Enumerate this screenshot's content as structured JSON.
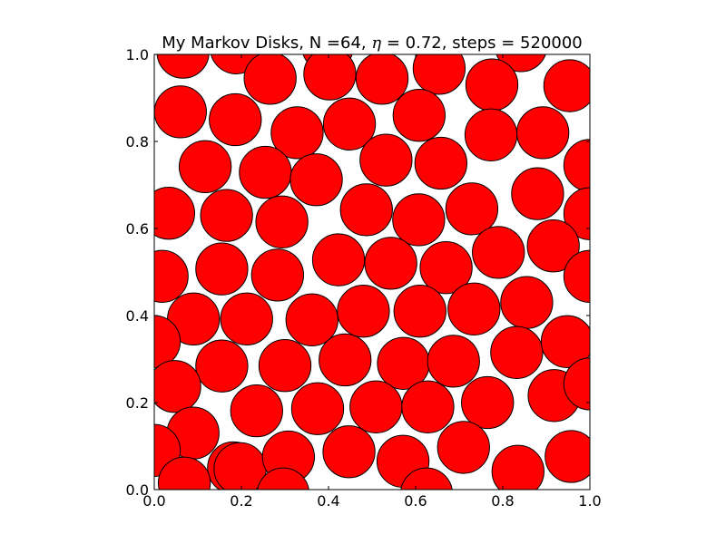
{
  "colors": {
    "disk_fill": "#ff0000",
    "disk_edge": "#000000",
    "axes_edge": "#000000",
    "background": "#ffffff"
  },
  "chart_data": {
    "type": "scatter",
    "title": "My Markov Disks, N =64, η = 0.72, steps = 520000",
    "title_parts": {
      "prefix": "My Markov Disks, N =64, ",
      "symbol": "η",
      "suffix": " = 0.72, steps = 520000"
    },
    "xlabel": "",
    "ylabel": "",
    "xlim": [
      0.0,
      1.0
    ],
    "ylim": [
      0.0,
      1.0
    ],
    "x_ticks": [
      "0.0",
      "0.2",
      "0.4",
      "0.6",
      "0.8",
      "1.0"
    ],
    "y_ticks": [
      "0.0",
      "0.2",
      "0.4",
      "0.6",
      "0.8",
      "1.0"
    ],
    "grid": false,
    "periodic_boundaries": true,
    "disk_radius": 0.0597,
    "marker": "circle",
    "disks": [
      [
        0.066,
        1.005
      ],
      [
        0.188,
        1.015
      ],
      [
        0.398,
        1.02
      ],
      [
        0.842,
        1.02
      ],
      [
        0.266,
        0.945
      ],
      [
        0.403,
        0.955
      ],
      [
        0.523,
        0.945
      ],
      [
        0.654,
        0.968
      ],
      [
        0.775,
        0.93
      ],
      [
        0.954,
        0.928
      ],
      [
        0.06,
        0.868
      ],
      [
        0.186,
        0.85
      ],
      [
        0.328,
        0.82
      ],
      [
        0.448,
        0.84
      ],
      [
        0.608,
        0.86
      ],
      [
        0.773,
        0.815
      ],
      [
        0.892,
        0.82
      ],
      [
        0.117,
        0.742
      ],
      [
        0.255,
        0.729
      ],
      [
        0.372,
        0.712
      ],
      [
        0.532,
        0.757
      ],
      [
        0.658,
        0.75
      ],
      [
        0.88,
        0.68
      ],
      [
        1.0,
        0.745
      ],
      [
        0.033,
        0.635
      ],
      [
        0.166,
        0.63
      ],
      [
        0.293,
        0.615
      ],
      [
        0.487,
        0.643
      ],
      [
        0.607,
        0.62
      ],
      [
        0.729,
        0.645
      ],
      [
        1.0,
        0.634
      ],
      [
        0.018,
        0.49
      ],
      [
        0.155,
        0.507
      ],
      [
        0.283,
        0.493
      ],
      [
        0.423,
        0.528
      ],
      [
        0.543,
        0.52
      ],
      [
        0.67,
        0.51
      ],
      [
        0.79,
        0.545
      ],
      [
        0.916,
        0.56
      ],
      [
        1.0,
        0.49
      ],
      [
        0.09,
        0.392
      ],
      [
        0.212,
        0.392
      ],
      [
        0.362,
        0.39
      ],
      [
        0.48,
        0.41
      ],
      [
        0.61,
        0.41
      ],
      [
        0.734,
        0.415
      ],
      [
        0.855,
        0.43
      ],
      [
        0.0,
        0.34
      ],
      [
        0.155,
        0.284
      ],
      [
        0.3,
        0.285
      ],
      [
        0.438,
        0.298
      ],
      [
        0.572,
        0.29
      ],
      [
        0.687,
        0.295
      ],
      [
        0.832,
        0.315
      ],
      [
        0.948,
        0.34
      ],
      [
        0.047,
        0.237
      ],
      [
        0.235,
        0.181
      ],
      [
        0.375,
        0.186
      ],
      [
        0.509,
        0.19
      ],
      [
        0.628,
        0.19
      ],
      [
        0.765,
        0.2
      ],
      [
        0.918,
        0.216
      ],
      [
        1.0,
        0.243
      ],
      [
        0.089,
        0.13
      ],
      [
        0.182,
        0.05
      ],
      [
        0.0,
        0.09
      ],
      [
        0.069,
        0.015
      ],
      [
        0.197,
        0.048
      ],
      [
        0.308,
        0.075
      ],
      [
        0.447,
        0.087
      ],
      [
        0.571,
        0.065
      ],
      [
        0.71,
        0.097
      ],
      [
        0.835,
        0.042
      ],
      [
        0.957,
        0.076
      ],
      [
        0.296,
        -0.01
      ],
      [
        0.625,
        -0.01
      ]
    ]
  }
}
